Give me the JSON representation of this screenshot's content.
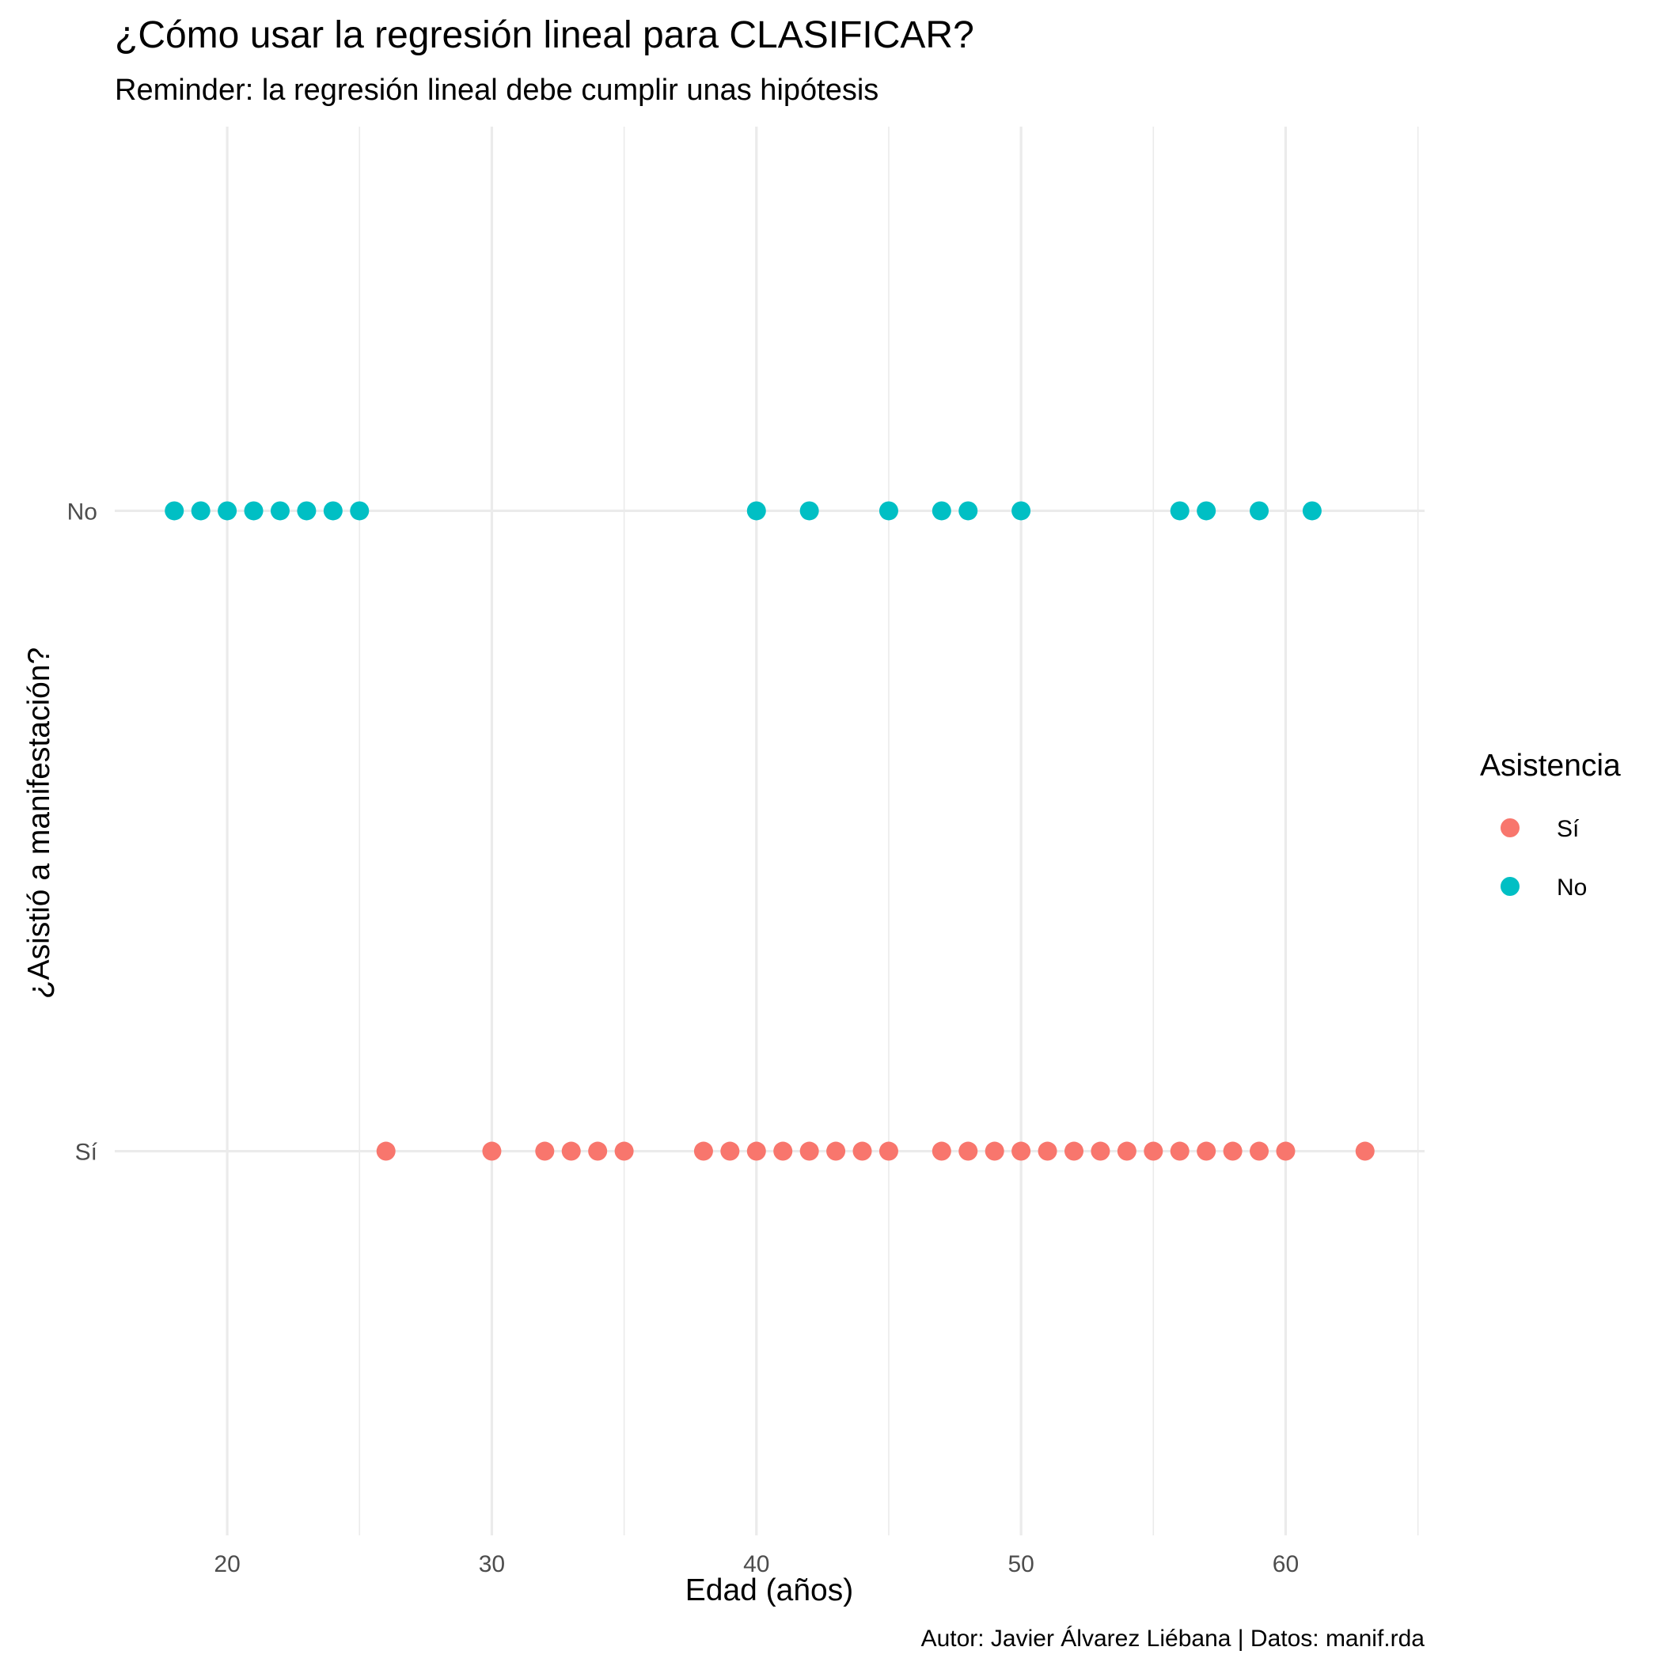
{
  "chart_data": {
    "type": "scatter",
    "title": "¿Cómo usar la regresión lineal para CLASIFICAR?",
    "subtitle": "Reminder: la regresión lineal debe cumplir unas hipótesis",
    "caption": "Autor: Javier Álvarez Liébana | Datos: manif.rda",
    "xlabel": "Edad (años)",
    "ylabel": "¿Asistió a manifestación?",
    "xlim": [
      15.75,
      65.25
    ],
    "x_ticks": [
      20,
      30,
      40,
      50,
      60
    ],
    "x_minor_ticks": [
      25,
      35,
      45,
      55,
      65
    ],
    "y_categories": [
      "Sí",
      "No"
    ],
    "grid": true,
    "legend": {
      "title": "Asistencia",
      "position": "right",
      "entries": [
        "Sí",
        "No"
      ]
    },
    "series": [
      {
        "name": "Sí",
        "color": "#F8766D",
        "y": "Sí",
        "x": [
          26,
          30,
          32,
          33,
          34,
          35,
          38,
          39,
          40,
          41,
          42,
          43,
          44,
          45,
          47,
          48,
          49,
          50,
          51,
          52,
          53,
          54,
          55,
          56,
          57,
          58,
          59,
          60,
          63
        ]
      },
      {
        "name": "No",
        "color": "#00BFC4",
        "y": "No",
        "x": [
          18,
          19,
          20,
          21,
          22,
          23,
          24,
          25,
          40,
          42,
          45,
          47,
          48,
          50,
          56,
          57,
          59,
          61
        ]
      }
    ]
  }
}
